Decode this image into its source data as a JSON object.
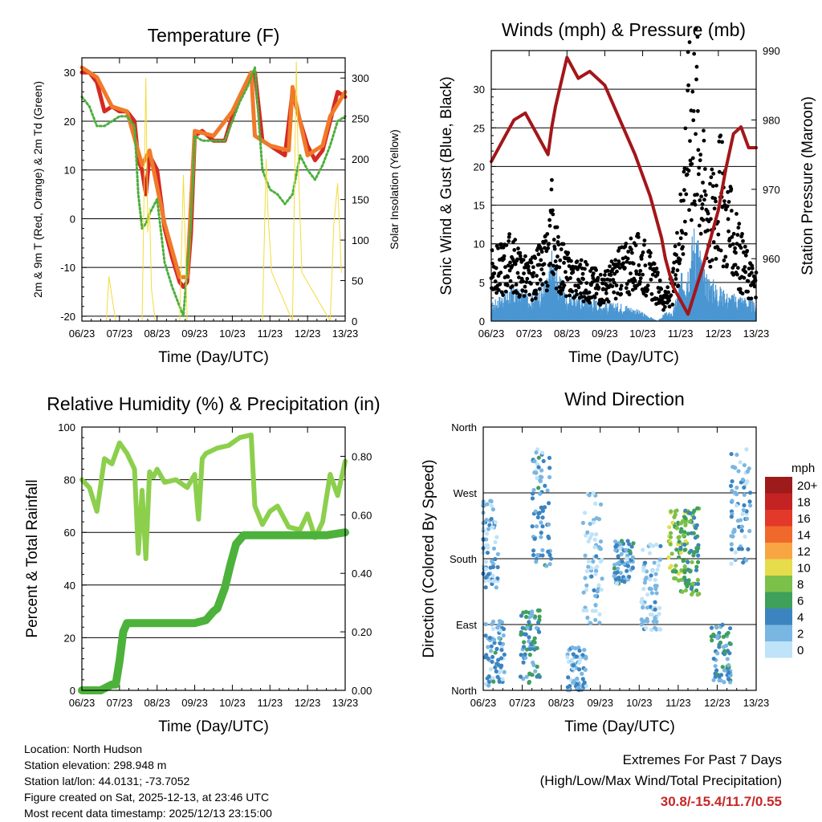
{
  "chart_data": [
    {
      "type": "line",
      "title": "Temperature (F)",
      "xlabel": "Time (Day/UTC)",
      "ylabel": "2m & 9m T (Red, Orange) & 2m Td (Green)",
      "ylabel_right": "Solar Insolation (Yellow)",
      "categories": [
        "06/23",
        "07/23",
        "08/23",
        "09/23",
        "10/23",
        "11/23",
        "12/23",
        "13/23"
      ],
      "ylim": [
        -21,
        33
      ],
      "yticks": [
        -20,
        -10,
        0,
        10,
        20,
        30
      ],
      "ylim_right": [
        0,
        325
      ],
      "yticks_right": [
        0,
        50,
        100,
        150,
        200,
        250,
        300
      ],
      "grid": true,
      "series": [
        {
          "name": "2m T (Red)",
          "color": "#d42a22",
          "x": [
            0,
            0.2,
            0.4,
            0.6,
            0.8,
            1.0,
            1.2,
            1.4,
            1.5,
            1.6,
            1.7,
            1.8,
            2.0,
            2.2,
            2.4,
            2.6,
            2.7,
            2.8,
            2.9,
            3.0,
            3.2,
            3.5,
            3.8,
            4.0,
            4.2,
            4.4,
            4.6,
            4.8,
            5.0,
            5.2,
            5.4,
            5.6,
            5.8,
            6.0,
            6.2,
            6.4,
            6.6,
            6.8,
            7.0
          ],
          "values": [
            30,
            30,
            28,
            22,
            23,
            22,
            22,
            20,
            12,
            10,
            5,
            13,
            10,
            -2,
            -8,
            -13,
            -14,
            -13,
            -3,
            17,
            18,
            16,
            16,
            21,
            25,
            28,
            30,
            16,
            15,
            14,
            13,
            26,
            20,
            15,
            12,
            14,
            20,
            26,
            25
          ]
        },
        {
          "name": "9m T (Orange)",
          "color": "#f07a2a",
          "x": [
            0,
            0.4,
            0.8,
            1.2,
            1.6,
            1.8,
            2.2,
            2.6,
            2.8,
            3.0,
            3.5,
            4.0,
            4.5,
            4.6,
            5.0,
            5.5,
            5.6,
            6.0,
            6.4,
            6.6,
            7.0
          ],
          "values": [
            31,
            29,
            23,
            22,
            11,
            14,
            -1,
            -12,
            -12,
            18,
            17,
            22,
            30,
            17,
            15,
            14,
            27,
            13,
            15,
            21,
            26
          ]
        },
        {
          "name": "2m Td (Green)",
          "color": "#4caf3c",
          "x": [
            0,
            0.2,
            0.4,
            0.6,
            0.8,
            1.0,
            1.2,
            1.4,
            1.5,
            1.6,
            1.7,
            1.8,
            2.0,
            2.2,
            2.4,
            2.6,
            2.7,
            2.8,
            2.9,
            3.0,
            3.2,
            3.5,
            3.8,
            4.0,
            4.2,
            4.4,
            4.6,
            4.8,
            5.0,
            5.2,
            5.4,
            5.6,
            5.8,
            6.0,
            6.2,
            6.4,
            6.6,
            6.8,
            7.0
          ],
          "values": [
            25,
            23,
            19,
            19,
            20,
            21,
            21,
            19,
            5,
            -2,
            -1,
            1,
            4,
            -9,
            -14,
            -18,
            -20,
            -10,
            -1,
            17,
            16,
            16,
            16,
            20,
            24,
            27,
            31,
            10,
            6,
            5,
            3,
            5,
            13,
            10,
            8,
            11,
            15,
            20,
            21
          ]
        },
        {
          "name": "Solar Insolation (Yellow)",
          "color": "#f2dc3a",
          "axis": "right",
          "x": [
            0.65,
            0.72,
            0.8,
            0.9,
            1.6,
            1.7,
            1.75,
            1.8,
            1.85,
            1.95,
            2.6,
            2.7,
            2.8,
            4.8,
            4.9,
            4.95,
            5.05,
            5.6,
            5.7,
            5.75,
            5.85,
            6.6,
            6.7,
            6.8,
            6.9
          ],
          "values": [
            0,
            55,
            30,
            0,
            0,
            300,
            110,
            140,
            40,
            0,
            0,
            180,
            0,
            0,
            200,
            130,
            60,
            0,
            320,
            200,
            60,
            0,
            120,
            170,
            60
          ]
        }
      ]
    },
    {
      "type": "line",
      "title": "Winds (mph) & Pressure (mb)",
      "xlabel": "Time (Day/UTC)",
      "ylabel": "Sonic Wind & Gust (Blue, Black)",
      "ylabel_right": "Station Pressure (Maroon)",
      "categories": [
        "06/23",
        "07/23",
        "08/23",
        "09/23",
        "10/23",
        "11/23",
        "12/23",
        "13/23"
      ],
      "ylim": [
        0,
        35
      ],
      "yticks": [
        0,
        5,
        10,
        15,
        20,
        25,
        30
      ],
      "ylim_right": [
        951,
        990
      ],
      "yticks_right": [
        960,
        970,
        980,
        990
      ],
      "grid": true,
      "series": [
        {
          "name": "Station Pressure (Maroon)",
          "color": "#a3161a",
          "axis": "right",
          "x": [
            0,
            0.3,
            0.6,
            0.9,
            1.2,
            1.5,
            1.6,
            1.7,
            2.0,
            2.3,
            2.6,
            3.0,
            3.4,
            3.8,
            4.2,
            4.5,
            4.6,
            4.8,
            5.2,
            5.6,
            6.0,
            6.2,
            6.4,
            6.6,
            6.8,
            7.0
          ],
          "values": [
            974,
            977,
            980,
            981,
            978,
            975,
            979,
            982,
            989,
            986,
            987,
            985,
            980,
            975,
            969,
            963,
            960,
            956,
            952,
            959,
            967,
            973,
            978,
            979,
            976,
            976
          ]
        },
        {
          "name": "Sonic Wind (Blue)",
          "color": "#4a96d2",
          "x": [
            0,
            0.5,
            1.0,
            1.5,
            1.6,
            1.7,
            2.0,
            2.5,
            3.0,
            3.5,
            4.0,
            4.4,
            4.6,
            4.8,
            5.0,
            5.2,
            5.4,
            5.6,
            5.8,
            6.0,
            6.3,
            6.6,
            7.0
          ],
          "values": [
            2,
            4,
            3,
            5,
            8,
            6,
            3,
            3,
            2,
            2,
            1,
            0,
            1,
            1,
            5,
            7,
            12,
            6,
            5,
            4,
            3,
            3,
            2
          ]
        },
        {
          "name": "Gust (Black)",
          "color": "#000000",
          "x": [
            0,
            0.5,
            1.0,
            1.5,
            1.6,
            1.7,
            2.0,
            2.5,
            3.0,
            3.5,
            4.0,
            4.4,
            4.6,
            4.8,
            5.0,
            5.2,
            5.4,
            5.6,
            5.8,
            6.0,
            6.3,
            6.6,
            7.0
          ],
          "values": [
            7,
            9,
            6,
            9,
            15,
            10,
            7,
            6,
            5,
            8,
            9,
            5,
            3,
            5,
            14,
            28,
            33,
            20,
            15,
            20,
            14,
            9,
            5
          ]
        }
      ]
    },
    {
      "type": "line",
      "title": "Relative Humidity (%) & Precipitation (in)",
      "xlabel": "Time (Day/UTC)",
      "ylabel": "Percent & Total Rainfall",
      "categories": [
        "06/23",
        "07/23",
        "08/23",
        "09/23",
        "10/23",
        "11/23",
        "12/23",
        "13/23"
      ],
      "ylim": [
        0,
        100
      ],
      "yticks": [
        0,
        20,
        40,
        60,
        80,
        100
      ],
      "ylim_right": [
        0,
        0.9
      ],
      "yticks_right": [
        "0.00",
        "0.20",
        "0.40",
        "0.60",
        "0.80"
      ],
      "grid": true,
      "series": [
        {
          "name": "Relative Humidity",
          "color": "#8ccf4d",
          "x": [
            0,
            0.2,
            0.4,
            0.6,
            0.8,
            1.0,
            1.2,
            1.4,
            1.5,
            1.6,
            1.7,
            1.8,
            1.9,
            2.0,
            2.2,
            2.5,
            2.8,
            3.0,
            3.1,
            3.2,
            3.3,
            3.6,
            3.9,
            4.2,
            4.5,
            4.6,
            4.8,
            5.0,
            5.2,
            5.5,
            5.8,
            6.0,
            6.2,
            6.4,
            6.6,
            6.8,
            7.0
          ],
          "values": [
            80,
            77,
            68,
            88,
            86,
            94,
            90,
            84,
            52,
            76,
            50,
            83,
            81,
            84,
            79,
            80,
            77,
            82,
            65,
            88,
            90,
            92,
            93,
            96,
            97,
            70,
            63,
            68,
            70,
            62,
            61,
            67,
            58,
            64,
            82,
            74,
            87
          ]
        },
        {
          "name": "Total Precipitation",
          "color": "#4db23b",
          "axis": "right",
          "x": [
            0,
            0.5,
            0.8,
            0.9,
            1.0,
            1.1,
            1.2,
            1.5,
            2.0,
            2.5,
            3.0,
            3.3,
            3.5,
            3.6,
            3.8,
            3.95,
            4.1,
            4.3,
            4.5,
            4.6,
            5.0,
            5.5,
            6.0,
            6.5,
            7.0
          ],
          "values": [
            0,
            0,
            0.02,
            0.02,
            0.1,
            0.2,
            0.23,
            0.23,
            0.23,
            0.23,
            0.23,
            0.24,
            0.27,
            0.28,
            0.35,
            0.43,
            0.5,
            0.53,
            0.53,
            0.53,
            0.53,
            0.53,
            0.53,
            0.53,
            0.54
          ]
        }
      ]
    },
    {
      "type": "scatter",
      "title": "Wind Direction",
      "xlabel": "Time (Day/UTC)",
      "ylabel": "Direction (Colored By Speed)",
      "categories": [
        "06/23",
        "07/23",
        "08/23",
        "09/23",
        "10/23",
        "11/23",
        "12/23",
        "13/23"
      ],
      "yticks": [
        "North",
        "East",
        "South",
        "West",
        "North"
      ],
      "ylim": [
        0,
        360
      ],
      "grid": true,
      "legend": {
        "title": "mph",
        "labels": [
          "20+",
          "18",
          "16",
          "14",
          "12",
          "10",
          "8",
          "6",
          "4",
          "2",
          "0"
        ],
        "colors": [
          "#9e1b1b",
          "#c32323",
          "#e2392a",
          "#f0692c",
          "#f8a644",
          "#e6dc4c",
          "#7cc04a",
          "#3ea05a",
          "#3c84c0",
          "#7ab6e2",
          "#bfe3f8"
        ],
        "position": "right"
      },
      "clusters": [
        {
          "x_center": 0.3,
          "dir_center": 50,
          "dir_spread": 45,
          "speed": 3
        },
        {
          "x_center": 0.15,
          "dir_center": 200,
          "dir_spread": 60,
          "speed": 2
        },
        {
          "x_center": 1.2,
          "dir_center": 60,
          "dir_spread": 50,
          "speed": 4
        },
        {
          "x_center": 1.5,
          "dir_center": 250,
          "dir_spread": 80,
          "speed": 3
        },
        {
          "x_center": 2.4,
          "dir_center": 30,
          "dir_spread": 30,
          "speed": 2
        },
        {
          "x_center": 2.8,
          "dir_center": 180,
          "dir_spread": 90,
          "speed": 1
        },
        {
          "x_center": 3.6,
          "dir_center": 175,
          "dir_spread": 30,
          "speed": 3
        },
        {
          "x_center": 4.3,
          "dir_center": 140,
          "dir_spread": 60,
          "speed": 1
        },
        {
          "x_center": 5.0,
          "dir_center": 200,
          "dir_spread": 50,
          "speed": 8
        },
        {
          "x_center": 5.3,
          "dir_center": 190,
          "dir_spread": 60,
          "speed": 6
        },
        {
          "x_center": 6.1,
          "dir_center": 50,
          "dir_spread": 40,
          "speed": 4
        },
        {
          "x_center": 6.6,
          "dir_center": 250,
          "dir_spread": 80,
          "speed": 2
        }
      ]
    }
  ],
  "info": {
    "location": "Location: North Hudson",
    "elevation": "Station elevation: 298.948 m",
    "latlon": "Station lat/lon: 44.0131; -73.7052",
    "created": "Figure created on Sat, 2025-12-13, at 23:46 UTC",
    "recent": "Most recent data timestamp: 2025/12/13 23:15:00"
  },
  "extremes": {
    "title": "Extremes For Past 7 Days",
    "subtitle": "(High/Low/Max Wind/Total Precipitation)",
    "values": "30.8/-15.4/11.7/0.55",
    "color": "#c62828"
  }
}
